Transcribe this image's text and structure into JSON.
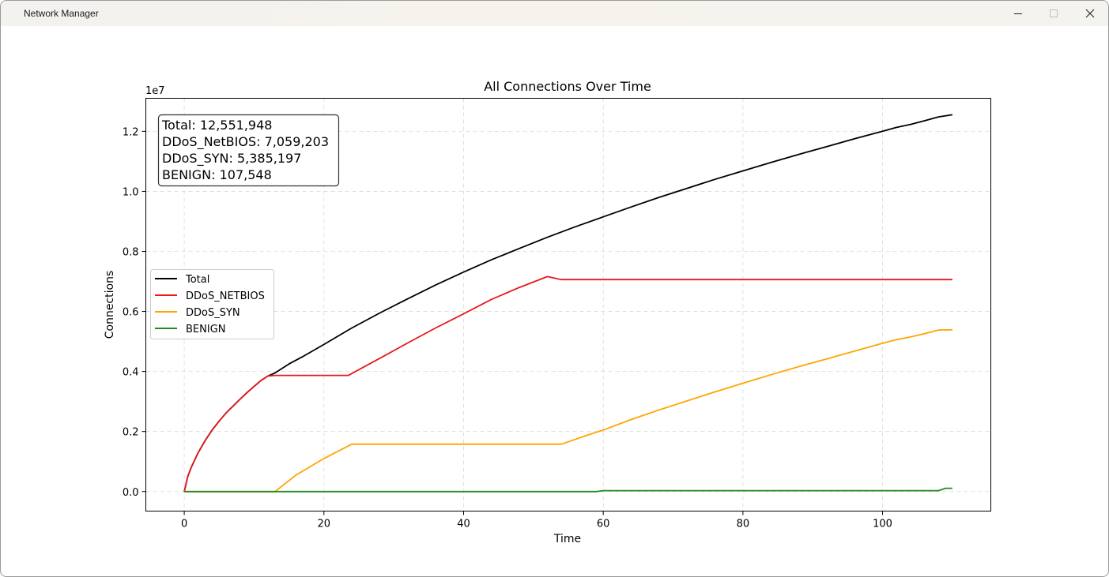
{
  "window": {
    "title": "Network Manager",
    "controls": {
      "minimize": "minimize-icon",
      "maximize": "maximize-icon",
      "close": "close-icon"
    }
  },
  "chart_data": {
    "type": "line",
    "title": "All Connections Over Time",
    "xlabel": "Time",
    "ylabel": "Connections",
    "y_offset_label": "1e7",
    "xlim": [
      -5.5,
      115.5
    ],
    "ylim": [
      -0.065,
      1.31
    ],
    "xticks": [
      0,
      20,
      40,
      60,
      80,
      100
    ],
    "yticks": [
      "0.0",
      "0.2",
      "0.4",
      "0.6",
      "0.8",
      "1.0",
      "1.2"
    ],
    "grid": true,
    "legend_position": "center-left",
    "stats_box": [
      "Total: 12,551,948",
      "DDoS_NetBIOS: 7,059,203",
      "DDoS_SYN: 5,385,197",
      "BENIGN: 107,548"
    ],
    "series": [
      {
        "name": "Total",
        "color": "#000000",
        "x": [
          0,
          0.5,
          1,
          2,
          3,
          4,
          5,
          6,
          7,
          8,
          9,
          10,
          11,
          12,
          13,
          15,
          17,
          20,
          24,
          28,
          32,
          36,
          40,
          44,
          48,
          52,
          56,
          60,
          64,
          68,
          72,
          76,
          80,
          84,
          88,
          92,
          96,
          100,
          102,
          104,
          106,
          108,
          110
        ],
        "y": [
          0,
          0.05,
          0.08,
          0.13,
          0.17,
          0.205,
          0.235,
          0.262,
          0.285,
          0.308,
          0.33,
          0.35,
          0.37,
          0.385,
          0.395,
          0.425,
          0.45,
          0.49,
          0.545,
          0.595,
          0.642,
          0.688,
          0.731,
          0.772,
          0.81,
          0.847,
          0.882,
          0.915,
          0.948,
          0.98,
          1.01,
          1.04,
          1.068,
          1.096,
          1.123,
          1.149,
          1.175,
          1.2,
          1.213,
          1.223,
          1.235,
          1.248,
          1.255
        ]
      },
      {
        "name": "DDoS_NETBIOS",
        "color": "#e41a1c",
        "x": [
          0,
          0.5,
          1,
          2,
          3,
          4,
          5,
          6,
          7,
          8,
          9,
          10,
          11,
          12,
          13,
          23.5,
          28,
          32,
          36,
          40,
          44,
          48,
          52,
          54,
          110
        ],
        "y": [
          0,
          0.05,
          0.08,
          0.13,
          0.17,
          0.205,
          0.235,
          0.262,
          0.285,
          0.308,
          0.33,
          0.35,
          0.37,
          0.385,
          0.387,
          0.387,
          0.444,
          0.495,
          0.545,
          0.592,
          0.64,
          0.68,
          0.716,
          0.706,
          0.706
        ]
      },
      {
        "name": "DDoS_SYN",
        "color": "#ffa500",
        "x": [
          0,
          13,
          16,
          20,
          24,
          54,
          58,
          60,
          64,
          68,
          72,
          76,
          80,
          84,
          88,
          92,
          96,
          100,
          102,
          104,
          106,
          108,
          110
        ],
        "y": [
          0,
          0,
          0.055,
          0.11,
          0.158,
          0.158,
          0.19,
          0.205,
          0.24,
          0.272,
          0.302,
          0.332,
          0.361,
          0.389,
          0.416,
          0.442,
          0.468,
          0.494,
          0.506,
          0.515,
          0.526,
          0.538,
          0.539
        ]
      },
      {
        "name": "BENIGN",
        "color": "#228b22",
        "x": [
          0,
          59,
          60,
          108,
          109,
          110
        ],
        "y": [
          0,
          0,
          0.003,
          0.003,
          0.011,
          0.011
        ]
      }
    ]
  }
}
